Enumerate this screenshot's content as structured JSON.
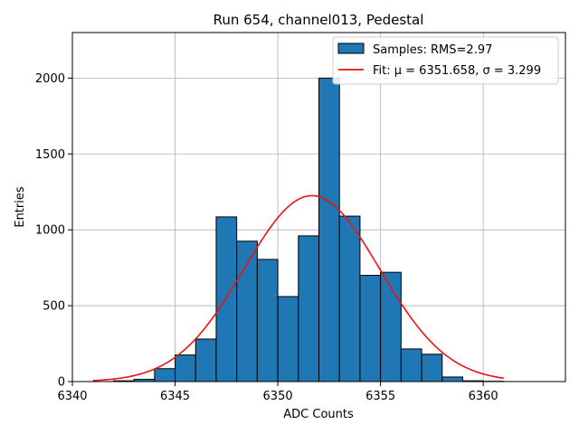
{
  "chart_data": {
    "type": "bar",
    "title": "Run 654, channel013, Pedestal",
    "xlabel": "ADC Counts",
    "ylabel": "Entries",
    "xlim": [
      6340,
      6364
    ],
    "ylim": [
      0,
      2300
    ],
    "xticks": [
      6340,
      6345,
      6350,
      6355,
      6360
    ],
    "yticks": [
      0,
      500,
      1000,
      1500,
      2000
    ],
    "grid": true,
    "legend_position": "top-right",
    "colors": {
      "bar_fill": "#1f77b4",
      "bar_edge": "#000000",
      "fit_line": "#ee1111",
      "grid": "#b0b0b0"
    },
    "histogram": {
      "name": "Samples: RMS=2.97",
      "bin_width": 1,
      "bins": [
        {
          "x0": 6342,
          "count": 5
        },
        {
          "x0": 6343,
          "count": 15
        },
        {
          "x0": 6344,
          "count": 85
        },
        {
          "x0": 6345,
          "count": 175
        },
        {
          "x0": 6346,
          "count": 280
        },
        {
          "x0": 6347,
          "count": 1085
        },
        {
          "x0": 6348,
          "count": 925
        },
        {
          "x0": 6349,
          "count": 805
        },
        {
          "x0": 6350,
          "count": 560
        },
        {
          "x0": 6351,
          "count": 960
        },
        {
          "x0": 6352,
          "count": 2000
        },
        {
          "x0": 6353,
          "count": 1090
        },
        {
          "x0": 6354,
          "count": 700
        },
        {
          "x0": 6355,
          "count": 720
        },
        {
          "x0": 6356,
          "count": 215
        },
        {
          "x0": 6357,
          "count": 180
        },
        {
          "x0": 6358,
          "count": 30
        },
        {
          "x0": 6359,
          "count": 5
        },
        {
          "x0": 6360,
          "count": 2
        }
      ]
    },
    "fit": {
      "name": "Fit: μ = 6351.658, σ = 3.299",
      "mu": 6351.658,
      "sigma": 3.299,
      "peak": 1225,
      "x_range": [
        6341,
        6361
      ]
    }
  }
}
